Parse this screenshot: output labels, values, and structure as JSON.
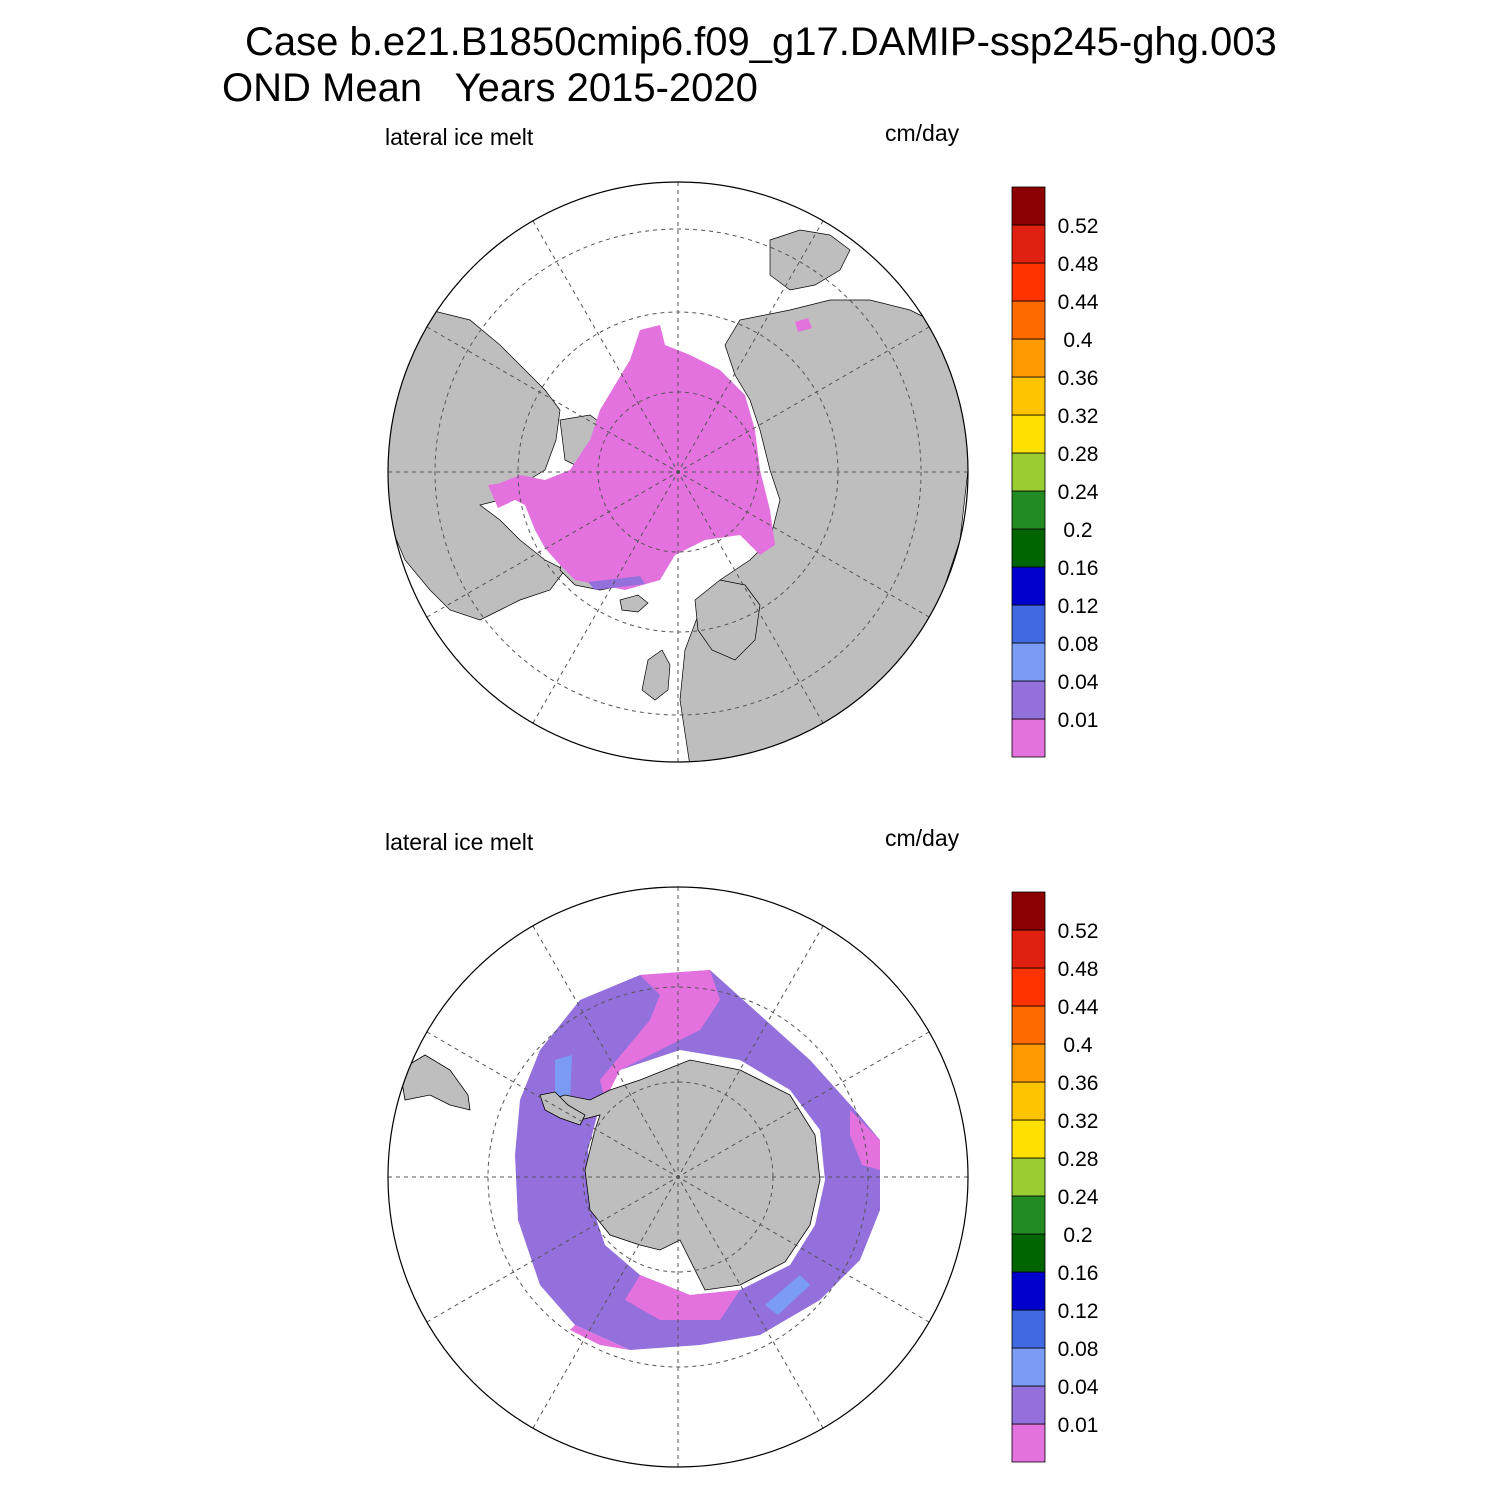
{
  "header": {
    "title_line1": "Case b.e21.B1850cmip6.f09_g17.DAMIP-ssp245-ghg.003",
    "title_line2": "OND Mean   Years 2015-2020"
  },
  "panels": [
    {
      "id": "north",
      "hemisphere": "Northern Hemisphere (polar stereographic)",
      "left_label": "lateral ice melt",
      "right_label": "cm/day"
    },
    {
      "id": "south",
      "hemisphere": "Southern Hemisphere (polar stereographic)",
      "left_label": "lateral ice melt",
      "right_label": "cm/day"
    }
  ],
  "colorbar": {
    "tick_labels": [
      "0.01",
      "0.04",
      "0.08",
      "0.12",
      "0.16",
      "0.2",
      "0.24",
      "0.28",
      "0.32",
      "0.36",
      "0.4",
      "0.44",
      "0.48",
      "0.52"
    ],
    "colors": [
      "#e372de",
      "#9370db",
      "#7b9cf5",
      "#4169e1",
      "#0000cd",
      "#006400",
      "#228b22",
      "#9acd32",
      "#ffe000",
      "#ffc400",
      "#ff9a00",
      "#ff6a00",
      "#ff3300",
      "#e02010",
      "#8b0000"
    ]
  },
  "colors": {
    "land": "#bebebe",
    "ocean": "#ffffff",
    "gridline": "#555555"
  },
  "map_features": {
    "north": {
      "fill_classes": [
        "0.01 (dominant, Arctic basin)",
        "0.04 (thin band near Greenland/Barents)"
      ]
    },
    "south": {
      "fill_classes": [
        "0.01 (inner/outer ring edges)",
        "0.04 (dominant ring)",
        "0.08 (small patches)"
      ]
    }
  }
}
